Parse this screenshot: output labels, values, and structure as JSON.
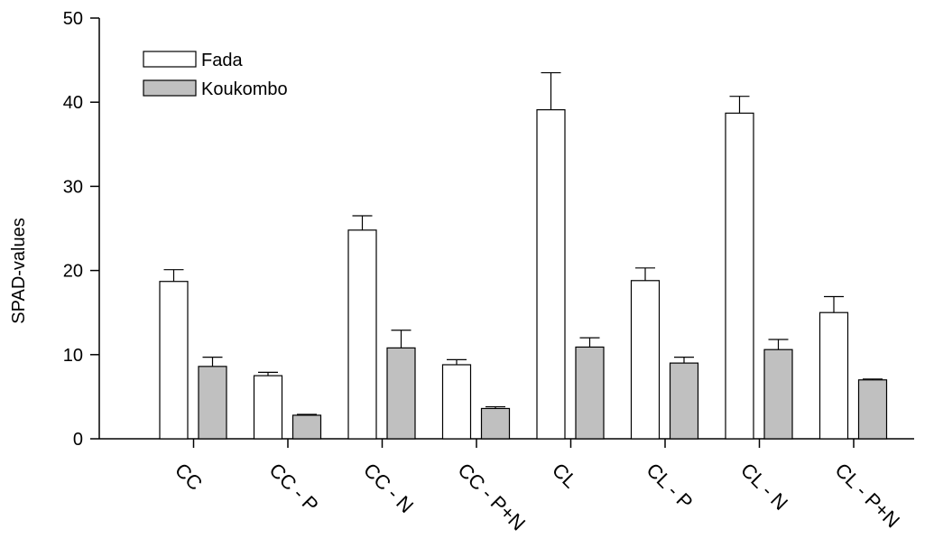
{
  "chart_data": {
    "type": "bar",
    "ylabel": "SPAD-values",
    "xlabel": "",
    "ylim": [
      0,
      50
    ],
    "yticks": [
      0,
      10,
      20,
      30,
      40,
      50
    ],
    "categories": [
      "CC",
      "CC - P",
      "CC - N",
      "CC - P+N",
      "CL",
      "CL - P",
      "CL - N",
      "CL - P+N"
    ],
    "series": [
      {
        "name": "Fada",
        "color": "#ffffff",
        "values": [
          18.7,
          7.5,
          24.8,
          8.8,
          39.1,
          18.8,
          38.7,
          15.0
        ],
        "errors": [
          1.4,
          0.4,
          1.7,
          0.6,
          4.4,
          1.5,
          2.0,
          1.9
        ]
      },
      {
        "name": "Koukombo",
        "color": "#c0c0c0",
        "values": [
          8.6,
          2.8,
          10.8,
          3.6,
          10.9,
          9.0,
          10.6,
          7.0
        ],
        "errors": [
          1.1,
          0.1,
          2.1,
          0.2,
          1.1,
          0.7,
          1.2,
          0.1
        ]
      }
    ],
    "legend_position": "top-left"
  }
}
